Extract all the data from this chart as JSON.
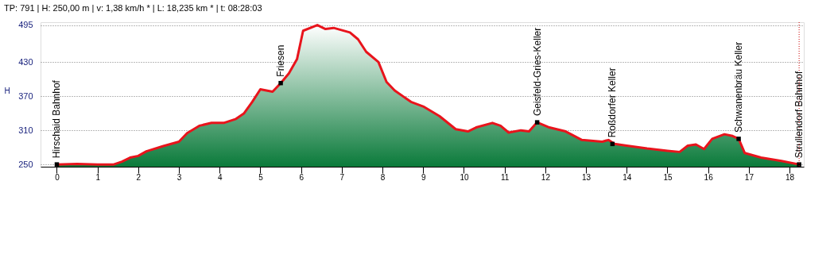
{
  "chart_data": {
    "type": "area",
    "title": "TP: 791 | H: 250,00 m | v: 1,38 km/h * | L: 18,235 km * | t: 08:28:03",
    "ylabel": "H",
    "xlim": [
      -0.4,
      18.35
    ],
    "xticks": [
      0,
      1,
      2,
      3,
      4,
      5,
      6,
      7,
      8,
      9,
      10,
      11,
      12,
      13,
      14,
      15,
      16,
      17,
      18
    ],
    "ylim": [
      246,
      500
    ],
    "yticks": [
      250,
      310,
      370,
      430,
      495
    ],
    "grid": "y",
    "line_style": "solid",
    "series": [
      {
        "type": "area",
        "color": "#e8141c",
        "x": [
          0,
          0.5,
          1.0,
          1.4,
          1.6,
          1.8,
          2.0,
          2.2,
          2.6,
          3.0,
          3.2,
          3.5,
          3.8,
          4.1,
          4.4,
          4.6,
          4.8,
          5.0,
          5.3,
          5.5,
          5.7,
          5.9,
          6.05,
          6.4,
          6.6,
          6.8,
          7.2,
          7.4,
          7.6,
          7.9,
          8.1,
          8.3,
          8.7,
          9.0,
          9.4,
          9.8,
          10.1,
          10.3,
          10.7,
          10.9,
          11.1,
          11.4,
          11.6,
          11.8,
          12.1,
          12.5,
          12.9,
          13.4,
          13.55,
          13.7,
          14.0,
          14.5,
          15.0,
          15.3,
          15.5,
          15.7,
          15.9,
          16.1,
          16.4,
          16.6,
          16.75,
          16.9,
          17.3,
          17.8,
          18.235
        ],
        "values": [
          250,
          251,
          250,
          250,
          255,
          262,
          265,
          273,
          282,
          290,
          305,
          318,
          323,
          323,
          330,
          340,
          360,
          382,
          378,
          393,
          410,
          435,
          485,
          495,
          488,
          490,
          482,
          470,
          448,
          430,
          395,
          380,
          360,
          352,
          335,
          312,
          308,
          315,
          323,
          318,
          306,
          310,
          308,
          324,
          315,
          308,
          293,
          290,
          293,
          286,
          283,
          278,
          274,
          272,
          283,
          285,
          277,
          295,
          303,
          300,
          295,
          270,
          262,
          256,
          250
        ]
      },
      {
        "type": "scatter",
        "marker": "square",
        "color": "#000000",
        "x": [
          0,
          5.5,
          11.8,
          13.65,
          16.75,
          18.235
        ],
        "values": [
          250,
          393,
          324,
          286,
          295,
          250
        ]
      }
    ],
    "ref_lines": [
      {
        "axis": "x",
        "value": 18.235,
        "color": "#cc0000",
        "line_style": "dotted"
      }
    ],
    "annotations": [
      {
        "text": "Hirschaid Bahnhof",
        "x": 0,
        "y": 250
      },
      {
        "text": "Friesen",
        "x": 5.5,
        "y": 393
      },
      {
        "text": "Geisfeld-Gries-Keller",
        "x": 11.8,
        "y": 324
      },
      {
        "text": "Roßdorfer Keller",
        "x": 13.65,
        "y": 286
      },
      {
        "text": "Schwanenbräu Keller",
        "x": 16.75,
        "y": 295
      },
      {
        "text": "Strullendorf Bahnhof",
        "x": 18.235,
        "y": 250
      }
    ]
  }
}
